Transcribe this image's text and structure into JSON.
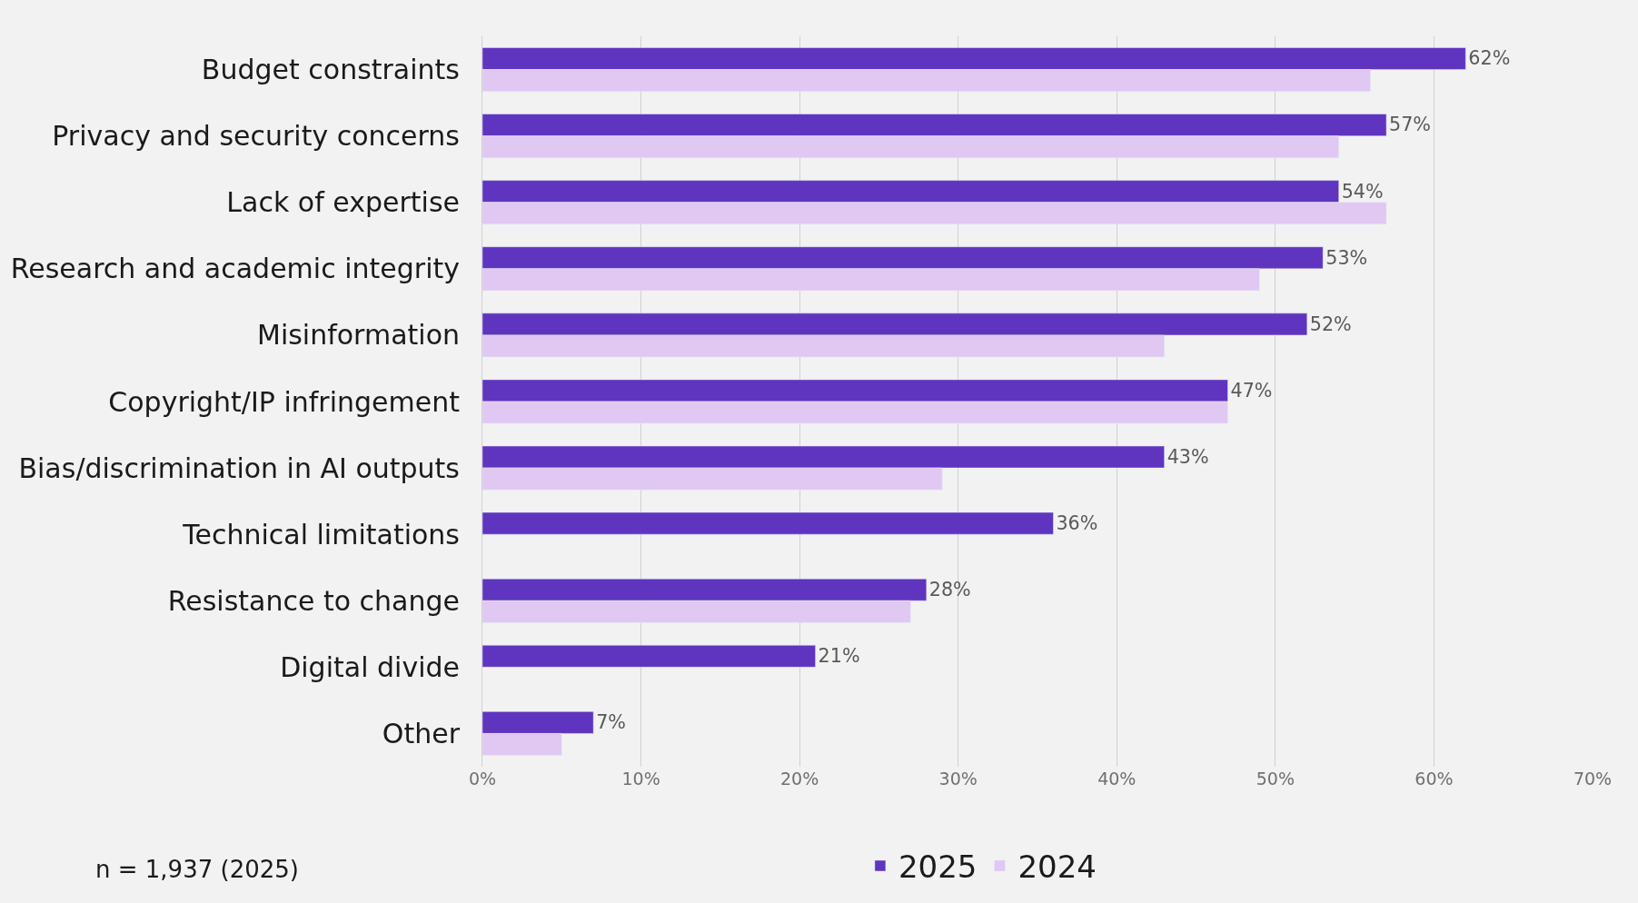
{
  "chart_data": {
    "type": "bar",
    "orientation": "horizontal",
    "categories": [
      "Budget constraints",
      "Privacy and security concerns",
      "Lack of expertise",
      "Research and academic integrity",
      "Misinformation",
      "Copyright/IP infringement",
      "Bias/discrimination in AI outputs",
      "Technical limitations",
      "Resistance to change",
      "Digital divide",
      "Other"
    ],
    "series": [
      {
        "name": "2025",
        "color": "#5f35c0",
        "values": [
          62,
          57,
          54,
          53,
          52,
          47,
          43,
          36,
          28,
          21,
          7
        ],
        "value_labels": [
          "62%",
          "57%",
          "54%",
          "53%",
          "52%",
          "47%",
          "43%",
          "36%",
          "28%",
          "21%",
          "7%"
        ]
      },
      {
        "name": "2024",
        "color": "#e0c8f2",
        "values": [
          56,
          54,
          57,
          49,
          43,
          47,
          29,
          null,
          27,
          null,
          5
        ]
      }
    ],
    "xlim": [
      0,
      70
    ],
    "xticks": [
      {
        "value": 0,
        "label": "0%"
      },
      {
        "value": 10,
        "label": "10%"
      },
      {
        "value": 20,
        "label": "20%"
      },
      {
        "value": 30,
        "label": "30%"
      },
      {
        "value": 40,
        "label": "40%"
      },
      {
        "value": 50,
        "label": "50%"
      },
      {
        "value": 60,
        "label": "60%"
      },
      {
        "value": 70,
        "label": "70%"
      }
    ],
    "grid": "x",
    "legend": "bottom",
    "annotations": [
      "n = 1,937 (2025)"
    ]
  }
}
